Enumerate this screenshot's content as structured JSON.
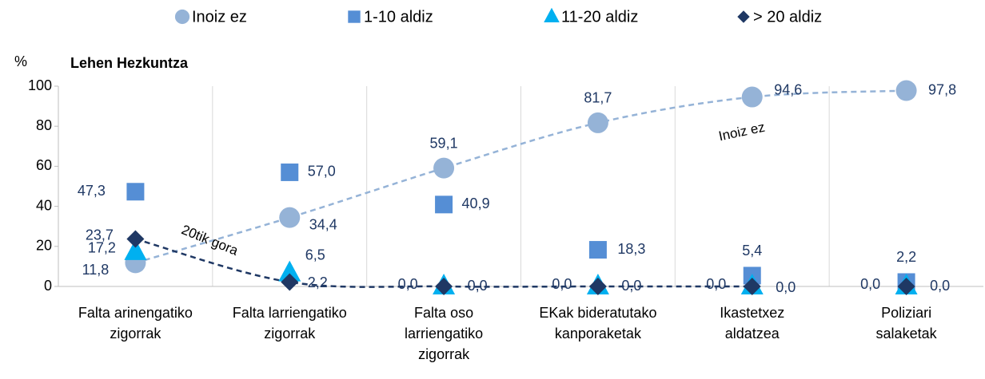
{
  "chart_data": {
    "type": "scatter",
    "title": "Lehen Hezkuntza",
    "y_label": "%",
    "categories": [
      [
        "Falta arinengatiko",
        "zigorrak"
      ],
      [
        "Falta larriengatiko",
        "zigorrak"
      ],
      [
        "Falta oso",
        "larriengatiko",
        "zigorrak"
      ],
      [
        "EKak bideratutako",
        "kanporaketak"
      ],
      [
        "Ikastetxez",
        "aldatzea"
      ],
      [
        "Poliziari",
        "salaketak"
      ]
    ],
    "series": [
      {
        "name": "Inoiz ez",
        "marker": "circle",
        "color": "#95b3d7",
        "values": [
          11.8,
          34.4,
          59.1,
          81.7,
          94.6,
          97.8
        ],
        "value_labels": [
          "11,8",
          "34,4",
          "59,1",
          "81,7",
          "94,6",
          "97,8"
        ]
      },
      {
        "name": "1-10 aldiz",
        "marker": "square",
        "color": "#558ed5",
        "values": [
          47.3,
          57.0,
          40.9,
          18.3,
          5.4,
          2.2
        ],
        "value_labels": [
          "47,3",
          "57,0",
          "40,9",
          "18,3",
          "5,4",
          "2,2"
        ]
      },
      {
        "name": "11-20 aldiz",
        "marker": "triangle",
        "color": "#00b0f0",
        "values": [
          17.2,
          6.5,
          0.0,
          0.0,
          0.0,
          0.0
        ],
        "value_labels": [
          "17,2",
          "6,5",
          "0,0",
          "0,0",
          "0,0",
          "0,0"
        ]
      },
      {
        "name": "> 20 aldiz",
        "marker": "diamond",
        "color": "#1f3864",
        "values": [
          23.7,
          2.2,
          0.0,
          0.0,
          0.0,
          0.0
        ],
        "value_labels": [
          "23,7",
          "2,2",
          "0,0",
          "0,0",
          "0,0",
          "0,0"
        ]
      }
    ],
    "annotations": [
      "Inoiz ez",
      "20tik gora"
    ],
    "ylim": [
      0,
      100
    ],
    "yticks": [
      0,
      20,
      40,
      60,
      80,
      100
    ],
    "grid": true,
    "legend": "top"
  }
}
